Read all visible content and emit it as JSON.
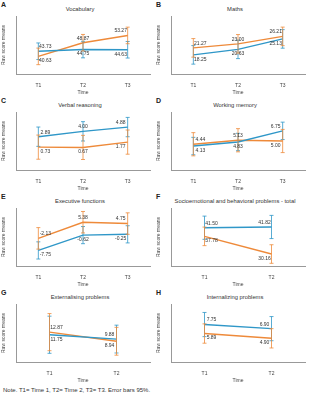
{
  "chart_data": [
    {
      "type": "line",
      "panel": "A",
      "title": "Vocabulary",
      "x_label": "Time",
      "y_label": "Raw score means",
      "categories": [
        "T1",
        "T2",
        "T3"
      ],
      "ylim": [
        30,
        65
      ],
      "grid": false,
      "tick_labels": "x",
      "data_labels": true,
      "series": [
        {
          "color": "#2f97c8",
          "values": [
            43.73,
            44.75,
            44.63
          ],
          "value_labels": [
            "43.73",
            "44.75",
            "44.63"
          ],
          "errors": [
            5,
            5,
            5
          ]
        },
        {
          "color": "#ee8a3a",
          "values": [
            40.63,
            48.87,
            53.27
          ],
          "value_labels": [
            "40.63",
            "48.87",
            "53.27"
          ],
          "errors": [
            5,
            5,
            5
          ]
        }
      ]
    },
    {
      "type": "line",
      "panel": "B",
      "title": "Maths",
      "x_label": "Time",
      "y_label": "Raw score means",
      "categories": [
        "T1",
        "T2",
        "T3"
      ],
      "ylim": [
        10,
        35
      ],
      "grid": false,
      "tick_labels": "x",
      "data_labels": true,
      "series": [
        {
          "color": "#2f97c8",
          "values": [
            18.25,
            20.63,
            25.13
          ],
          "value_labels": [
            "18.25",
            "20.63",
            "25.13"
          ],
          "errors": [
            4,
            4,
            4
          ]
        },
        {
          "color": "#ee8a3a",
          "values": [
            21.27,
            23.0,
            26.21
          ],
          "value_labels": [
            "21.27",
            "23.00",
            "26.21"
          ],
          "errors": [
            4,
            4,
            4
          ]
        }
      ]
    },
    {
      "type": "line",
      "panel": "C",
      "title": "Verbal reasoning",
      "x_label": "Time",
      "y_label": "Raw score means",
      "categories": [
        "T1",
        "T2",
        "T3"
      ],
      "ylim": [
        -4,
        8
      ],
      "grid": false,
      "tick_labels": "x",
      "data_labels": true,
      "series": [
        {
          "color": "#2f97c8",
          "values": [
            2.89,
            4.0,
            4.88
          ],
          "value_labels": [
            "2.89",
            "4.00",
            "4.88"
          ],
          "errors": [
            2,
            2,
            2
          ]
        },
        {
          "color": "#ee8a3a",
          "values": [
            0.73,
            0.67,
            1.77
          ],
          "value_labels": [
            "0.73",
            "0.67",
            "1.77"
          ],
          "errors": [
            2.5,
            2.5,
            2.5
          ]
        }
      ]
    },
    {
      "type": "line",
      "panel": "D",
      "title": "Working memory",
      "x_label": "Time",
      "y_label": "Raw score means",
      "categories": [
        "T1",
        "T2",
        "T3"
      ],
      "ylim": [
        0,
        10
      ],
      "grid": false,
      "tick_labels": "x",
      "data_labels": true,
      "series": [
        {
          "color": "#2f97c8",
          "values": [
            4.13,
            4.83,
            6.75
          ],
          "value_labels": [
            "4.13",
            "4.83",
            "6.75"
          ],
          "errors": [
            1.5,
            1.5,
            1.5
          ]
        },
        {
          "color": "#ee8a3a",
          "values": [
            4.44,
            5.13,
            5.0
          ],
          "value_labels": [
            "4.44",
            "5.13",
            "5.00"
          ],
          "errors": [
            2,
            2,
            2
          ]
        }
      ]
    },
    {
      "type": "line",
      "panel": "E",
      "title": "Executive functions",
      "x_label": "Time",
      "y_label": "Raw score means",
      "categories": [
        "T1",
        "T2",
        "T3"
      ],
      "ylim": [
        -15,
        12
      ],
      "grid": false,
      "tick_labels": "x",
      "data_labels": true,
      "series": [
        {
          "color": "#2f97c8",
          "values": [
            -7.75,
            -0.62,
            -0.25
          ],
          "value_labels": [
            "-7.75",
            "-0.62",
            "-0.25"
          ],
          "errors": [
            4,
            4,
            4
          ]
        },
        {
          "color": "#ee8a3a",
          "values": [
            -2.13,
            5.38,
            4.75
          ],
          "value_labels": [
            "-2.13",
            "5.38",
            "4.75"
          ],
          "errors": [
            5,
            5,
            5
          ]
        }
      ]
    },
    {
      "type": "line",
      "panel": "F",
      "title": "Socioemotional and behavioral problems - total",
      "x_label": "Time",
      "y_label": "Raw score means",
      "categories": [
        "T1",
        "T2"
      ],
      "ylim": [
        25,
        50
      ],
      "grid": false,
      "tick_labels": "x",
      "data_labels": true,
      "series": [
        {
          "color": "#2f97c8",
          "values": [
            41.5,
            41.82
          ],
          "value_labels": [
            "41.50",
            "41.82"
          ],
          "errors": [
            5,
            5
          ]
        },
        {
          "color": "#ee8a3a",
          "values": [
            37.78,
            30.16
          ],
          "value_labels": [
            "37.78",
            "30.16"
          ],
          "errors": [
            4,
            4
          ]
        }
      ]
    },
    {
      "type": "line",
      "panel": "G",
      "title": "Externalising problems",
      "x_label": "Time",
      "y_label": "Raw score means",
      "categories": [
        "T1",
        "T2"
      ],
      "ylim": [
        0,
        25
      ],
      "grid": false,
      "tick_labels": "x",
      "data_labels": true,
      "series": [
        {
          "color": "#2f97c8",
          "values": [
            11.75,
            9.88
          ],
          "value_labels": [
            "11.75",
            "9.88"
          ],
          "errors": [
            8,
            6
          ]
        },
        {
          "color": "#ee8a3a",
          "values": [
            12.87,
            8.94
          ],
          "value_labels": [
            "12.87",
            "8.94"
          ],
          "errors": [
            8,
            6
          ]
        }
      ]
    },
    {
      "type": "line",
      "panel": "H",
      "title": "Internalizing problems",
      "x_label": "Time",
      "y_label": "Raw score means",
      "categories": [
        "T1",
        "T2"
      ],
      "ylim": [
        0,
        12
      ],
      "grid": false,
      "tick_labels": "x",
      "data_labels": true,
      "series": [
        {
          "color": "#2f97c8",
          "values": [
            7.75,
            6.9
          ],
          "value_labels": [
            "7.75",
            "6.90"
          ],
          "errors": [
            2.5,
            2.5
          ]
        },
        {
          "color": "#ee8a3a",
          "values": [
            5.89,
            4.9
          ],
          "value_labels": [
            "5.89",
            "4.90"
          ],
          "errors": [
            2,
            2
          ]
        }
      ]
    }
  ],
  "note": "Note. T1= Time 1, T2= Time 2, T3= T3. Error bars 95%."
}
